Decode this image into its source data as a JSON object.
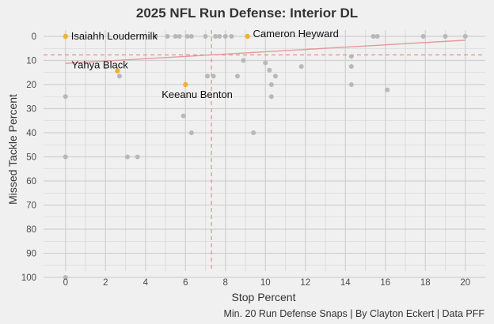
{
  "chart_data": {
    "type": "scatter",
    "title": "2025 NFL Run Defense: Interior DL",
    "xlabel": "Stop Percent",
    "ylabel": "Missed Tackle Percent",
    "caption": "Min. 20 Run Defense Snaps | By Clayton Eckert | Data PFF",
    "xlim": [
      -1.1,
      21.0
    ],
    "ylim": [
      0,
      100
    ],
    "y_reversed": true,
    "xticks": [
      0,
      2,
      4,
      6,
      8,
      10,
      12,
      14,
      16,
      18,
      20
    ],
    "yticks": [
      0,
      10,
      20,
      30,
      40,
      50,
      60,
      70,
      80,
      90,
      100
    ],
    "grid": true,
    "reference_lines": {
      "x_mean": 7.3,
      "y_mean": 7.7
    },
    "trend_line": {
      "x": [
        0,
        20
      ],
      "y": [
        11.2,
        1.6
      ]
    },
    "colors": {
      "background": "#f0f0f0",
      "grid": "#d0d0d0",
      "point": "#b8b8b8",
      "highlight": "#f2b132",
      "reference": "#e88a8a",
      "trend": "#e89a9a"
    },
    "points": [
      {
        "x": 0,
        "y": 25
      },
      {
        "x": 0,
        "y": 50
      },
      {
        "x": 0,
        "y": 100
      },
      {
        "x": 2.7,
        "y": 16.5
      },
      {
        "x": 3.1,
        "y": 50
      },
      {
        "x": 3.6,
        "y": 50
      },
      {
        "x": 4.5,
        "y": 0
      },
      {
        "x": 5.1,
        "y": 0
      },
      {
        "x": 5.5,
        "y": 0
      },
      {
        "x": 5.7,
        "y": 0
      },
      {
        "x": 6.1,
        "y": 0
      },
      {
        "x": 6.3,
        "y": 0
      },
      {
        "x": 5.9,
        "y": 33
      },
      {
        "x": 6.3,
        "y": 40
      },
      {
        "x": 7.0,
        "y": 0
      },
      {
        "x": 7.5,
        "y": 0
      },
      {
        "x": 7.7,
        "y": 0
      },
      {
        "x": 8.0,
        "y": 0
      },
      {
        "x": 8.3,
        "y": 0
      },
      {
        "x": 7.1,
        "y": 16.5
      },
      {
        "x": 7.4,
        "y": 16.5
      },
      {
        "x": 8.6,
        "y": 16.5
      },
      {
        "x": 8.9,
        "y": 10
      },
      {
        "x": 9.4,
        "y": 40
      },
      {
        "x": 10.0,
        "y": 11
      },
      {
        "x": 10.2,
        "y": 14
      },
      {
        "x": 10.3,
        "y": 20
      },
      {
        "x": 10.5,
        "y": 16.5
      },
      {
        "x": 10.3,
        "y": 25
      },
      {
        "x": 11.8,
        "y": 12.5
      },
      {
        "x": 14.3,
        "y": 8.3
      },
      {
        "x": 14.3,
        "y": 12.5
      },
      {
        "x": 14.3,
        "y": 20
      },
      {
        "x": 15.4,
        "y": 0
      },
      {
        "x": 15.6,
        "y": 0
      },
      {
        "x": 16.1,
        "y": 22.2
      },
      {
        "x": 17.9,
        "y": 0
      },
      {
        "x": 19.0,
        "y": 0
      },
      {
        "x": 20.0,
        "y": 0
      }
    ],
    "highlighted": [
      {
        "label": "Isaiahh Loudermilk",
        "x": 0,
        "y": 0
      },
      {
        "label": "Cameron Heyward",
        "x": 9.1,
        "y": 0
      },
      {
        "label": "Yahya Black",
        "x": 2.6,
        "y": 14.3
      },
      {
        "label": "Keeanu Benton",
        "x": 6.0,
        "y": 20
      }
    ]
  }
}
